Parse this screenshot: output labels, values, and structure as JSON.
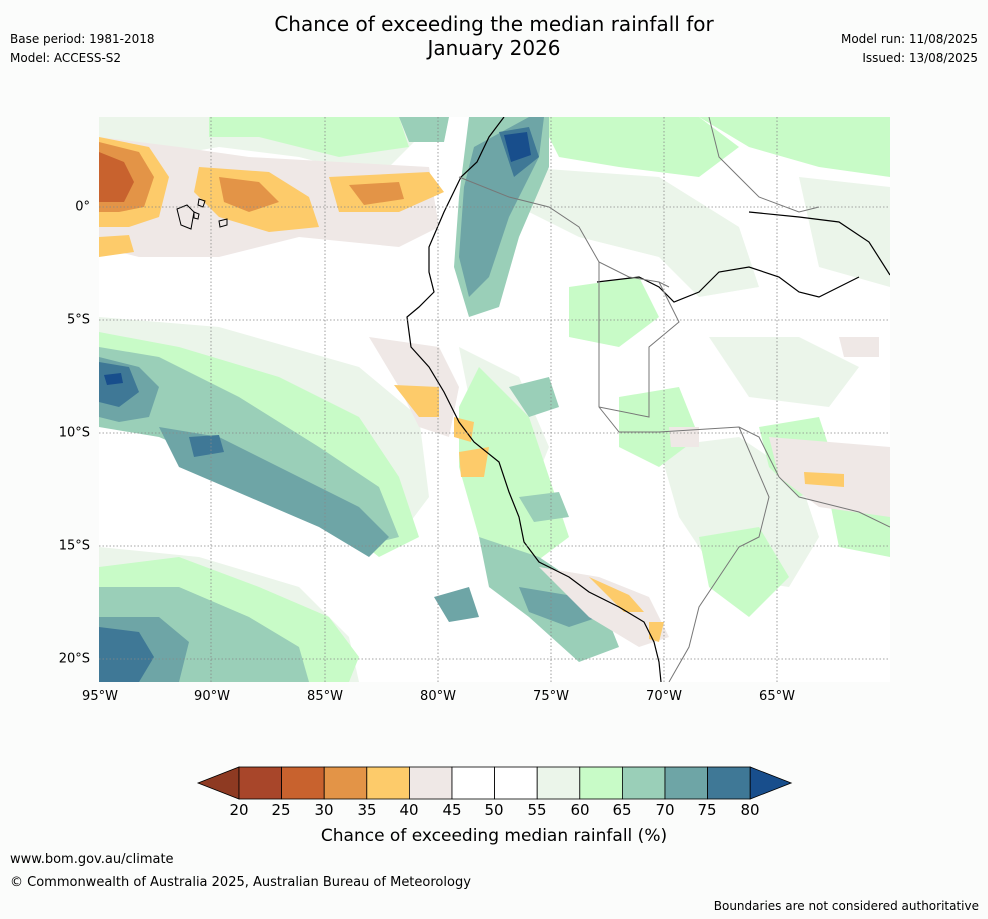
{
  "header": {
    "title_line1": "Chance of exceeding the median rainfall for",
    "title_line2": "January 2026",
    "base_period": "Base period: 1981-2018",
    "model": "Model: ACCESS-S2",
    "model_run": "Model run: 11/08/2025",
    "issued": "Issued: 13/08/2025"
  },
  "map": {
    "lon_ticks": [
      "95°W",
      "90°W",
      "85°W",
      "80°W",
      "75°W",
      "70°W",
      "65°W"
    ],
    "lat_ticks": [
      "0°",
      "5°S",
      "10°S",
      "15°S",
      "20°S"
    ]
  },
  "colorbar": {
    "labels": [
      "20",
      "25",
      "30",
      "35",
      "40",
      "45",
      "50",
      "55",
      "60",
      "65",
      "70",
      "75",
      "80"
    ],
    "colors": [
      "#a8462a",
      "#c8622e",
      "#e39447",
      "#fdcb6a",
      "#efe8e6",
      "#ffffff",
      "#ffffff",
      "#ebf5ea",
      "#c8fbc7",
      "#9acfb8",
      "#6ea5a6",
      "#3f7896"
    ],
    "under_color": "#8e3a22",
    "over_color": "#184e8c",
    "title": "Chance of exceeding median rainfall (%)"
  },
  "footer": {
    "url": "www.bom.gov.au/climate",
    "copyright": "© Commonwealth of Australia 2025, Australian Bureau of Meteorology",
    "disclaimer": "Boundaries are not considered authoritative"
  }
}
